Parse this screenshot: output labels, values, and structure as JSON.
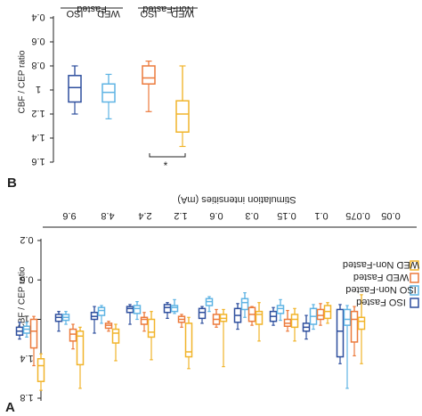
{
  "chart_data": [
    {
      "id": "A",
      "type": "boxplot",
      "panel_label": "A",
      "title": "Stimulation intensities (mA)",
      "ylabel": "CBF / CEP ratio",
      "ylim": [
        0.2,
        1.8
      ],
      "yticks": [
        0.2,
        0.6,
        1,
        1.4,
        1.8
      ],
      "ytick_labels": [
        "0.2",
        "0.6",
        "1",
        "1.4",
        "1.8"
      ],
      "categories": [
        "0.05",
        "0.075",
        "0.1",
        "0.15",
        "0.3",
        "0.6",
        "1.2",
        "2.4",
        "4.8",
        "9.6"
      ],
      "legend_position": "top-right",
      "series": [
        {
          "name": "ISO Fasted",
          "color": "#2e4f9e",
          "boxes": [
            {
              "min": 0.85,
              "q1": 0.9,
              "median": 1.12,
              "q3": 1.38,
              "max": 1.45
            },
            {
              "min": 0.96,
              "q1": 1.04,
              "median": 1.08,
              "q3": 1.12,
              "max": 1.2
            },
            {
              "min": 0.88,
              "q1": 0.92,
              "median": 0.97,
              "q3": 1.02,
              "max": 1.06
            },
            {
              "min": 0.84,
              "q1": 0.89,
              "median": 0.96,
              "q3": 1.03,
              "max": 1.1
            },
            {
              "min": 0.87,
              "q1": 0.89,
              "median": 0.93,
              "q3": 0.99,
              "max": 1.04
            },
            {
              "min": 0.83,
              "q1": 0.85,
              "median": 0.88,
              "q3": 0.93,
              "max": 0.99
            },
            {
              "min": 0.85,
              "q1": 0.87,
              "median": 0.89,
              "q3": 0.93,
              "max": 1.05
            },
            {
              "min": 0.87,
              "q1": 0.93,
              "median": 0.97,
              "q3": 1.0,
              "max": 1.14
            },
            {
              "min": 0.92,
              "q1": 0.95,
              "median": 0.98,
              "q3": 1.02,
              "max": 1.12
            },
            {
              "min": 1.03,
              "q1": 1.08,
              "median": 1.12,
              "q3": 1.16,
              "max": 1.2
            }
          ]
        },
        {
          "name": "ISO Non-Fasted",
          "color": "#5fb4e4",
          "boxes": [
            {
              "min": 0.86,
              "q1": 0.9,
              "median": 1.0,
              "q3": 1.06,
              "max": 1.7
            },
            {
              "min": 0.85,
              "q1": 0.89,
              "median": 0.97,
              "q3": 1.05,
              "max": 1.1
            },
            {
              "min": 0.8,
              "q1": 0.86,
              "median": 0.89,
              "q3": 0.94,
              "max": 1.01
            },
            {
              "min": 0.73,
              "q1": 0.79,
              "median": 0.83,
              "q3": 0.9,
              "max": 0.98
            },
            {
              "min": 0.77,
              "q1": 0.79,
              "median": 0.82,
              "q3": 0.86,
              "max": 0.92
            },
            {
              "min": 0.8,
              "q1": 0.86,
              "median": 0.88,
              "q3": 0.92,
              "max": 0.94
            },
            {
              "min": 0.82,
              "q1": 0.86,
              "median": 0.89,
              "q3": 0.94,
              "max": 1.0
            },
            {
              "min": 0.86,
              "q1": 0.88,
              "median": 0.91,
              "q3": 0.96,
              "max": 1.04
            },
            {
              "min": 0.92,
              "q1": 0.95,
              "median": 0.98,
              "q3": 1.01,
              "max": 1.05
            },
            {
              "min": 1.03,
              "q1": 1.07,
              "median": 1.1,
              "q3": 1.14,
              "max": 1.18
            }
          ]
        },
        {
          "name": "WED Fasted",
          "color": "#ec7a3c",
          "boxes": [
            {
              "min": 0.87,
              "q1": 0.92,
              "median": 1.0,
              "q3": 1.23,
              "max": 1.37
            },
            {
              "min": 0.84,
              "q1": 0.9,
              "median": 0.96,
              "q3": 1.0,
              "max": 1.06
            },
            {
              "min": 0.91,
              "q1": 1.0,
              "median": 1.04,
              "q3": 1.07,
              "max": 1.12
            },
            {
              "min": 0.87,
              "q1": 0.88,
              "median": 0.95,
              "q3": 1.02,
              "max": 1.06
            },
            {
              "min": 0.9,
              "q1": 0.95,
              "median": 1.0,
              "q3": 1.05,
              "max": 1.08
            },
            {
              "min": 0.95,
              "q1": 0.97,
              "median": 1.0,
              "q3": 1.03,
              "max": 1.08
            },
            {
              "min": 0.93,
              "q1": 0.98,
              "median": 1.0,
              "q3": 1.05,
              "max": 1.12
            },
            {
              "min": 1.02,
              "q1": 1.04,
              "median": 1.06,
              "q3": 1.09,
              "max": 1.12
            },
            {
              "min": 1.05,
              "q1": 1.1,
              "median": 1.15,
              "q3": 1.22,
              "max": 1.3
            },
            {
              "min": 0.97,
              "q1": 1.0,
              "median": 1.12,
              "q3": 1.29,
              "max": 1.47
            }
          ]
        },
        {
          "name": "WED Non-Fasted",
          "color": "#f1b42a",
          "boxes": [
            {
              "min": 0.75,
              "q1": 0.98,
              "median": 1.02,
              "q3": 1.1,
              "max": 1.45
            },
            {
              "min": 0.83,
              "q1": 0.86,
              "median": 0.92,
              "q3": 0.99,
              "max": 1.04
            },
            {
              "min": 0.89,
              "q1": 0.95,
              "median": 1.0,
              "q3": 1.08,
              "max": 1.22
            },
            {
              "min": 0.83,
              "q1": 0.92,
              "median": 0.95,
              "q3": 1.05,
              "max": 1.22
            },
            {
              "min": 0.9,
              "q1": 0.95,
              "median": 0.99,
              "q3": 1.02,
              "max": 1.48
            },
            {
              "min": 0.98,
              "q1": 1.04,
              "median": 1.33,
              "q3": 1.38,
              "max": 1.5
            },
            {
              "min": 0.92,
              "q1": 1.0,
              "median": 1.13,
              "q3": 1.18,
              "max": 1.41
            },
            {
              "min": 1.05,
              "q1": 1.1,
              "median": 1.14,
              "q3": 1.24,
              "max": 1.42
            },
            {
              "min": 1.08,
              "q1": 1.12,
              "median": 1.17,
              "q3": 1.46,
              "max": 1.7
            },
            {
              "min": 1.35,
              "q1": 1.4,
              "median": 1.47,
              "q3": 1.63,
              "max": 1.72
            }
          ]
        }
      ]
    },
    {
      "id": "B",
      "type": "boxplot",
      "panel_label": "B",
      "ylabel": "CBF / CEP ratio",
      "ylim": [
        0.4,
        1.6
      ],
      "yticks": [
        0.4,
        0.6,
        0.8,
        1,
        1.2,
        1.4,
        1.6
      ],
      "ytick_labels": [
        "0.4",
        "0.6",
        "0.8",
        "1",
        "1.2",
        "1.4",
        "1.6"
      ],
      "group_labels": [
        "Fasted",
        "Non-Fasted"
      ],
      "categories": [
        "ISO",
        "WED",
        "ISO",
        "WED"
      ],
      "significance_label": "*",
      "series": [
        {
          "name": "ISO Fasted",
          "color": "#2e4f9e",
          "box": {
            "min": 0.8,
            "q1": 0.88,
            "median": 0.98,
            "q3": 1.1,
            "max": 1.2
          }
        },
        {
          "name": "WED Fasted",
          "color": "#5fb4e4",
          "box": {
            "min": 0.87,
            "q1": 0.95,
            "median": 1.02,
            "q3": 1.1,
            "max": 1.24
          }
        },
        {
          "name": "ISO Non-Fasted",
          "color": "#ec7a3c",
          "box": {
            "min": 0.76,
            "q1": 0.8,
            "median": 0.9,
            "q3": 0.95,
            "max": 1.18
          }
        },
        {
          "name": "WED Non-Fasted",
          "color": "#f1b42a",
          "box": {
            "min": 0.8,
            "q1": 1.09,
            "median": 1.2,
            "q3": 1.35,
            "max": 1.47
          }
        }
      ]
    }
  ]
}
